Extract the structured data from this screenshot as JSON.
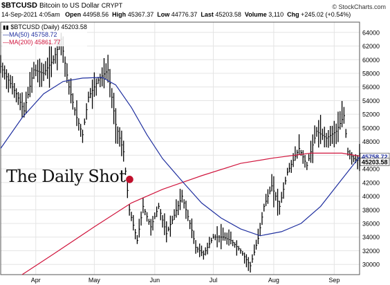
{
  "header": {
    "symbol": "$BTCUSD",
    "name": "Bitcoin to US Dollar",
    "exchange": "CRYPT",
    "date": "14-Sep-2021 4:05am",
    "open_label": "Open",
    "open": "44958.56",
    "high_label": "High",
    "high": "45367.37",
    "low_label": "Low",
    "low": "44776.37",
    "last_label": "Last",
    "last": "45203.58",
    "volume_label": "Volume",
    "volume": "3,110",
    "chg_label": "Chg",
    "chg": "+245.02 (+0.54%)",
    "watermark": "© StockCharts.com"
  },
  "legend": {
    "main": "$BTCUSD (Daily) 45203.58",
    "ma50": "MA(50) 45758.72",
    "ma200": "MA(200) 45861.77"
  },
  "brand": "The Daily Shot",
  "colors": {
    "price": "#000000",
    "ma50": "#1f2f9f",
    "ma200": "#d0143c",
    "grid": "#e4e4e4"
  },
  "chart_data": {
    "type": "line",
    "title": "",
    "ylim": [
      28500,
      65500
    ],
    "y_ticks": [
      30000,
      32000,
      34000,
      36000,
      38000,
      40000,
      42000,
      44000,
      46000,
      48000,
      50000,
      52000,
      54000,
      56000,
      58000,
      60000,
      62000,
      64000
    ],
    "y_tick_labels": [
      "30000",
      "32000",
      "34000",
      "36000",
      "38000",
      "40000",
      "42000",
      "44000",
      "46000",
      "48000",
      "50000",
      "52000",
      "54000",
      "56000",
      "58000",
      "60000",
      "62000",
      "64000"
    ],
    "x_ticks": [
      {
        "label": "Apr",
        "date": "2021-04-01"
      },
      {
        "label": "May",
        "date": "2021-05-01"
      },
      {
        "label": "Jun",
        "date": "2021-06-01"
      },
      {
        "label": "Jul",
        "date": "2021-07-01"
      },
      {
        "label": "Aug",
        "date": "2021-08-01"
      },
      {
        "label": "Sep",
        "date": "2021-09-01"
      }
    ],
    "x_range": [
      "2021-03-14",
      "2021-09-14"
    ],
    "price_keypoints": [
      [
        "2021-03-14",
        59000
      ],
      [
        "2021-03-18",
        57000
      ],
      [
        "2021-03-22",
        55000
      ],
      [
        "2021-03-26",
        52500
      ],
      [
        "2021-03-31",
        58500
      ],
      [
        "2021-04-05",
        58000
      ],
      [
        "2021-04-10",
        60000
      ],
      [
        "2021-04-14",
        63000
      ],
      [
        "2021-04-18",
        56000
      ],
      [
        "2021-04-22",
        51500
      ],
      [
        "2021-04-25",
        49000
      ],
      [
        "2021-04-28",
        54500
      ],
      [
        "2021-05-03",
        57000
      ],
      [
        "2021-05-08",
        58500
      ],
      [
        "2021-05-12",
        50500
      ],
      [
        "2021-05-16",
        46500
      ],
      [
        "2021-05-19",
        38000
      ],
      [
        "2021-05-23",
        33500
      ],
      [
        "2021-05-26",
        38500
      ],
      [
        "2021-05-30",
        35500
      ],
      [
        "2021-06-03",
        38500
      ],
      [
        "2021-06-07",
        34500
      ],
      [
        "2021-06-10",
        36500
      ],
      [
        "2021-06-15",
        40000
      ],
      [
        "2021-06-20",
        35000
      ],
      [
        "2021-06-22",
        32500
      ],
      [
        "2021-06-26",
        31500
      ],
      [
        "2021-07-01",
        34000
      ],
      [
        "2021-07-06",
        34000
      ],
      [
        "2021-07-10",
        33500
      ],
      [
        "2021-07-15",
        32000
      ],
      [
        "2021-07-20",
        29800
      ],
      [
        "2021-07-24",
        33800
      ],
      [
        "2021-07-27",
        38500
      ],
      [
        "2021-07-31",
        41500
      ],
      [
        "2021-08-04",
        38500
      ],
      [
        "2021-08-08",
        43500
      ],
      [
        "2021-08-14",
        47000
      ],
      [
        "2021-08-18",
        44500
      ],
      [
        "2021-08-23",
        49500
      ],
      [
        "2021-08-28",
        48500
      ],
      [
        "2021-09-02",
        49500
      ],
      [
        "2021-09-06",
        51800
      ],
      [
        "2021-09-08",
        46500
      ],
      [
        "2021-09-11",
        45500
      ],
      [
        "2021-09-14",
        45203.58
      ]
    ],
    "series": [
      {
        "name": "MA(50)",
        "values": [
          [
            "2021-03-14",
            47000
          ],
          [
            "2021-03-25",
            51500
          ],
          [
            "2021-04-05",
            55000
          ],
          [
            "2021-04-15",
            56800
          ],
          [
            "2021-04-25",
            57300
          ],
          [
            "2021-05-05",
            57400
          ],
          [
            "2021-05-12",
            56300
          ],
          [
            "2021-05-20",
            53000
          ],
          [
            "2021-05-28",
            49000
          ],
          [
            "2021-06-05",
            45500
          ],
          [
            "2021-06-15",
            42200
          ],
          [
            "2021-06-25",
            39000
          ],
          [
            "2021-07-05",
            36800
          ],
          [
            "2021-07-15",
            35200
          ],
          [
            "2021-07-25",
            34200
          ],
          [
            "2021-08-05",
            34800
          ],
          [
            "2021-08-15",
            36000
          ],
          [
            "2021-08-25",
            38500
          ],
          [
            "2021-09-05",
            42500
          ],
          [
            "2021-09-14",
            45758.72
          ]
        ]
      },
      {
        "name": "MA(200)",
        "values": [
          [
            "2021-03-25",
            28500
          ],
          [
            "2021-04-10",
            31500
          ],
          [
            "2021-05-01",
            35500
          ],
          [
            "2021-05-20",
            39000
          ],
          [
            "2021-06-05",
            41000
          ],
          [
            "2021-06-25",
            43000
          ],
          [
            "2021-07-15",
            44800
          ],
          [
            "2021-08-01",
            45600
          ],
          [
            "2021-08-20",
            46300
          ],
          [
            "2021-09-05",
            46300
          ],
          [
            "2021-09-14",
            45861.77
          ]
        ]
      }
    ],
    "last_price_label": "45203.58",
    "ma50_price_label": "45758.72"
  }
}
